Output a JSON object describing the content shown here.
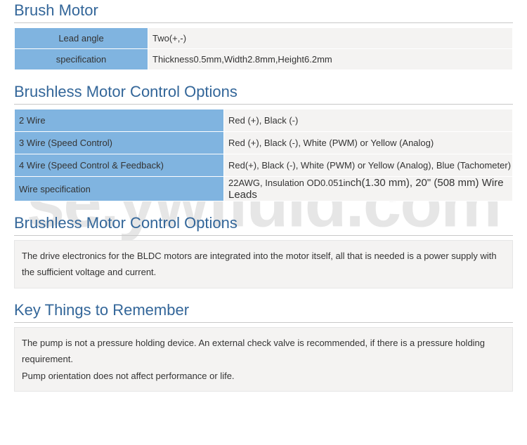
{
  "colors": {
    "heading": "#336699",
    "header_cell_bg": "#80b4e0",
    "value_cell_bg": "#f4f3f2",
    "border_rule": "#c8c8c8",
    "text": "#333333",
    "watermark": "rgba(200,200,200,0.45)"
  },
  "watermark": "se.ywfluid.com",
  "sections": {
    "brush_motor": {
      "title": "Brush Motor",
      "rows": [
        {
          "label": "Lead angle",
          "value": "Two(+,-)"
        },
        {
          "label": "specification",
          "value": "Thickness0.5mm,Width2.8mm,Height6.2mm"
        }
      ]
    },
    "brushless_options": {
      "title": "Brushless Motor Control Options",
      "rows": [
        {
          "label": "2 Wire",
          "value": "Red (+), Black (-)"
        },
        {
          "label": "3 Wire (Speed Control)",
          "value": "Red (+), Black (-), White (PWM) or Yellow (Analog)"
        },
        {
          "label": "4 Wire (Speed Control & Feedback)",
          "value": "Red(+), Black (-), White (PWM) or Yellow (Analog), Blue (Tachometer)"
        },
        {
          "label": "Wire specification",
          "value_pre": "22AWG, Insulation OD0.051in",
          "value_big": "ch(1.30 mm), 20\" (508 mm) Wire Leads"
        }
      ]
    },
    "brushless_note": {
      "title": "Brushless Motor Control Options",
      "text": "The drive electronics for the BLDC motors are integrated into the motor itself, all that is needed is a power supply with the sufficient voltage and current."
    },
    "key_things": {
      "title": "Key Things to Remember",
      "line1": "The pump is not a pressure holding device. An external check valve is recommended, if there is a pressure holding requirement.",
      "line2": "Pump orientation does not affect performance or life."
    }
  }
}
